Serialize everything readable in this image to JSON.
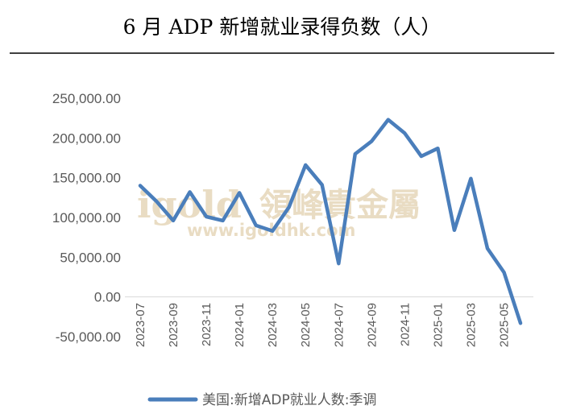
{
  "chart_data": {
    "type": "line",
    "title": "6 月 ADP 新增就业录得负数（人）",
    "xlabel": "",
    "ylabel": "",
    "ylim": [
      -50000,
      250000
    ],
    "y_ticks": [
      "250,000.00",
      "200,000.00",
      "150,000.00",
      "100,000.00",
      "50,000.00",
      "0.00",
      "-50,000.00"
    ],
    "x_tick_labels": [
      "2023-07",
      "2023-09",
      "2023-11",
      "2024-01",
      "2024-03",
      "2024-05",
      "2024-07",
      "2024-09",
      "2024-11",
      "2025-01",
      "2025-03",
      "2025-05"
    ],
    "x": [
      "2023-07",
      "2023-08",
      "2023-09",
      "2023-10",
      "2023-11",
      "2023-12",
      "2024-01",
      "2024-02",
      "2024-03",
      "2024-04",
      "2024-05",
      "2024-06",
      "2024-07",
      "2024-08",
      "2024-09",
      "2024-10",
      "2024-11",
      "2024-12",
      "2025-01",
      "2025-02",
      "2025-03",
      "2025-04",
      "2025-05",
      "2025-06"
    ],
    "series": [
      {
        "name": "美国:新增ADP就业人数:季调",
        "color": "#4a7ebb",
        "values": [
          140000,
          120000,
          96000,
          132000,
          101000,
          96000,
          131000,
          90000,
          83000,
          113000,
          166000,
          141000,
          42000,
          180000,
          196000,
          223000,
          206000,
          177000,
          187000,
          84000,
          149000,
          61000,
          31000,
          -33000
        ]
      }
    ],
    "grid": false,
    "legend_position": "bottom"
  },
  "watermark": {
    "brand": "igold",
    "cn": "領峰貴金屬",
    "url": "www.igoldhk.com"
  }
}
